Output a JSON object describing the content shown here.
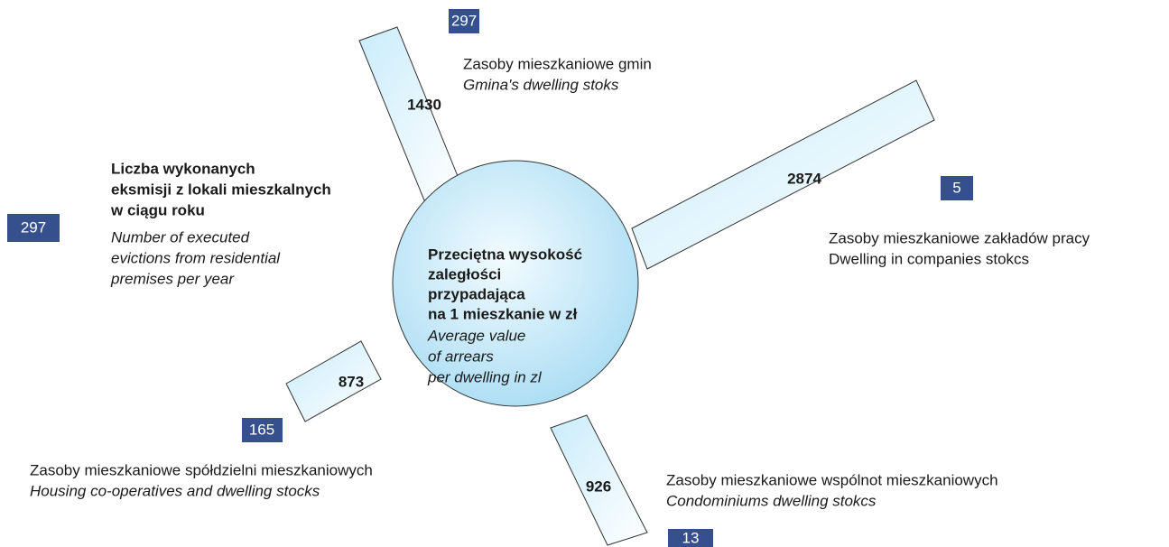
{
  "center": {
    "bold_lines": [
      "Przeciętna wysokość",
      "zaległości",
      "przypadająca",
      "na 1 mieszkanie w zł"
    ],
    "italic_lines": [
      "Average value",
      "of arrears",
      "per dwelling in zl"
    ]
  },
  "evictions": {
    "count": 297,
    "bold_lines": [
      "Liczba wykonanych",
      "eksmisji z lokali mieszkalnych",
      "w ciągu roku"
    ],
    "italic_lines": [
      "Number of executed",
      "evictions from residential",
      "premises per year"
    ]
  },
  "branches": [
    {
      "value": 1430,
      "count": 297,
      "label": "Zasoby mieszkaniowe gmin",
      "label_en": "Gmina's dwelling stoks"
    },
    {
      "value": 2874,
      "count": 5,
      "label": "Zasoby mieszkaniowe zakładów pracy",
      "label_en": "Dwelling in companies stokcs"
    },
    {
      "value": 873,
      "count": 165,
      "label": "Zasoby mieszkaniowe spółdzielni mieszkaniowych",
      "label_en": "Housing co-operatives and dwelling stocks"
    },
    {
      "value": 926,
      "count": 13,
      "label": "Zasoby mieszkaniowe wspólnot mieszkaniowych",
      "label_en": "Condominiums dwelling stokcs"
    }
  ]
}
